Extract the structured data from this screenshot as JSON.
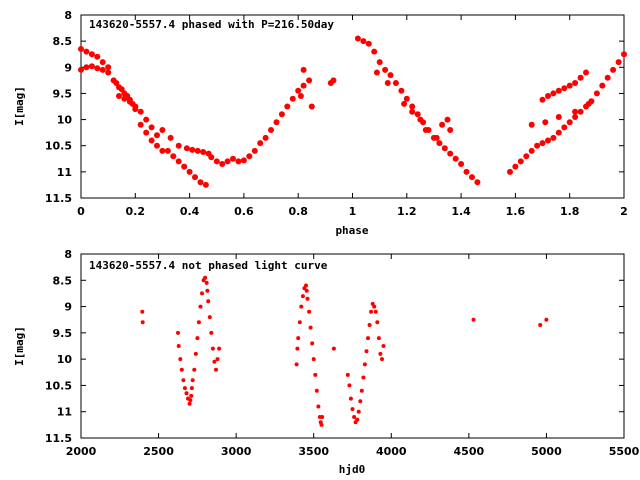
{
  "chart_data": [
    {
      "type": "scatter",
      "title": "143620-5557.4 phased with P=216.50day",
      "xlabel": "phase",
      "ylabel": "I[mag]",
      "xlim": [
        0,
        2
      ],
      "ylim": [
        8,
        11.5
      ],
      "y_inverted": true,
      "x_ticks": [
        "0",
        "0.2",
        "0.4",
        "0.6",
        "0.8",
        "1",
        "1.2",
        "1.4",
        "1.6",
        "1.8",
        "2"
      ],
      "y_ticks": [
        "8",
        "8.5",
        "9",
        "9.5",
        "10",
        "10.5",
        "11",
        "11.5"
      ],
      "grid": false,
      "marker_color": "#ff0000",
      "series": [
        {
          "x": [
            0.0,
            0.02,
            0.04,
            0.06,
            0.08,
            0.1,
            0.0,
            0.02,
            0.04,
            0.06,
            0.08,
            0.1,
            0.12,
            0.13,
            0.14,
            0.15,
            0.16,
            0.17,
            0.18,
            0.19,
            0.2,
            0.14,
            0.16,
            0.18,
            0.2,
            0.22,
            0.24,
            0.26,
            0.28,
            0.22,
            0.24,
            0.26,
            0.28,
            0.3,
            0.32,
            0.34,
            0.36,
            0.38,
            0.4,
            0.42,
            0.44,
            0.46,
            0.3,
            0.33,
            0.36,
            0.39,
            0.41,
            0.43,
            0.45,
            0.47,
            0.48,
            0.5,
            0.52,
            0.54,
            0.56,
            0.58,
            0.6,
            0.62,
            0.64,
            0.66,
            0.68,
            0.7,
            0.72,
            0.74,
            0.76,
            0.78,
            0.8,
            0.82,
            0.84,
            0.81,
            0.85,
            0.92,
            0.93,
            0.82,
            1.02,
            1.04,
            1.06,
            1.08,
            1.1,
            1.12,
            1.14,
            1.16,
            1.18,
            1.2,
            1.22,
            1.24,
            1.26,
            1.28,
            1.3,
            1.32,
            1.34,
            1.36,
            1.38,
            1.4,
            1.42,
            1.44,
            1.46,
            1.09,
            1.13,
            1.19,
            1.22,
            1.25,
            1.27,
            1.31,
            1.33,
            1.35,
            1.36,
            1.58,
            1.6,
            1.62,
            1.64,
            1.66,
            1.68,
            1.7,
            1.72,
            1.74,
            1.76,
            1.78,
            1.8,
            1.82,
            1.84,
            1.86,
            1.88,
            1.9,
            1.92,
            1.94,
            1.96,
            1.98,
            2.0,
            1.7,
            1.72,
            1.74,
            1.76,
            1.78,
            1.8,
            1.82,
            1.84,
            1.86,
            1.66,
            1.71,
            1.76,
            1.82,
            1.87
          ],
          "y": [
            8.65,
            8.7,
            8.75,
            8.8,
            8.9,
            9.0,
            9.05,
            9.0,
            8.98,
            9.02,
            9.05,
            9.1,
            9.25,
            9.3,
            9.38,
            9.42,
            9.5,
            9.55,
            9.62,
            9.7,
            9.8,
            9.55,
            9.6,
            9.66,
            9.75,
            9.85,
            10.0,
            10.15,
            10.3,
            10.1,
            10.25,
            10.4,
            10.5,
            10.6,
            10.6,
            10.7,
            10.8,
            10.9,
            11.0,
            11.1,
            11.2,
            11.25,
            10.2,
            10.35,
            10.5,
            10.55,
            10.58,
            10.6,
            10.62,
            10.65,
            10.72,
            10.8,
            10.85,
            10.8,
            10.75,
            10.8,
            10.78,
            10.7,
            10.6,
            10.45,
            10.35,
            10.2,
            10.05,
            9.9,
            9.75,
            9.6,
            9.45,
            9.35,
            9.25,
            9.55,
            9.75,
            9.3,
            9.25,
            9.05,
            8.45,
            8.5,
            8.55,
            8.7,
            8.9,
            9.05,
            9.15,
            9.3,
            9.45,
            9.6,
            9.75,
            9.9,
            10.05,
            10.2,
            10.35,
            10.45,
            10.55,
            10.65,
            10.75,
            10.85,
            11.0,
            11.1,
            11.2,
            9.1,
            9.3,
            9.7,
            9.85,
            10.0,
            10.2,
            10.35,
            10.1,
            10.0,
            10.2,
            11.0,
            10.9,
            10.8,
            10.7,
            10.6,
            10.5,
            10.45,
            10.4,
            10.35,
            10.25,
            10.15,
            10.05,
            9.95,
            9.85,
            9.75,
            9.65,
            9.5,
            9.35,
            9.2,
            9.05,
            8.9,
            8.75,
            9.62,
            9.55,
            9.5,
            9.45,
            9.4,
            9.35,
            9.3,
            9.2,
            9.1,
            10.1,
            10.05,
            9.95,
            9.85,
            9.7
          ]
        }
      ]
    },
    {
      "type": "scatter",
      "title": "143620-5557.4 not phased light curve",
      "xlabel": "hjd0",
      "ylabel": "I[mag]",
      "xlim": [
        2000,
        5500
      ],
      "ylim": [
        8,
        11.5
      ],
      "y_inverted": true,
      "x_ticks": [
        "2000",
        "2500",
        "3000",
        "3500",
        "4000",
        "4500",
        "5000",
        "5500"
      ],
      "y_ticks": [
        "8",
        "8.5",
        "9",
        "9.5",
        "10",
        "10.5",
        "11",
        "11.5"
      ],
      "grid": false,
      "marker_color": "#ff0000",
      "series": [
        {
          "x": [
            2395,
            2398,
            2625,
            2630,
            2640,
            2650,
            2660,
            2670,
            2680,
            2690,
            2700,
            2705,
            2710,
            2715,
            2720,
            2730,
            2740,
            2750,
            2760,
            2770,
            2780,
            2790,
            2800,
            2810,
            2815,
            2820,
            2830,
            2840,
            2850,
            2860,
            2870,
            2880,
            2890,
            3390,
            3395,
            3400,
            3410,
            3420,
            3430,
            3440,
            3450,
            3455,
            3460,
            3470,
            3480,
            3490,
            3500,
            3510,
            3520,
            3530,
            3540,
            3545,
            3550,
            3555,
            3630,
            3720,
            3730,
            3740,
            3750,
            3760,
            3770,
            3780,
            3790,
            3800,
            3810,
            3820,
            3830,
            3840,
            3850,
            3860,
            3870,
            3880,
            3890,
            3900,
            3910,
            3920,
            3930,
            3940,
            3950,
            4530,
            4960,
            5000
          ],
          "y": [
            9.1,
            9.3,
            9.5,
            9.75,
            10.0,
            10.2,
            10.4,
            10.55,
            10.65,
            10.75,
            10.85,
            10.78,
            10.7,
            10.55,
            10.4,
            10.2,
            9.9,
            9.6,
            9.3,
            9.0,
            8.75,
            8.5,
            8.45,
            8.55,
            8.7,
            8.9,
            9.2,
            9.5,
            9.8,
            10.05,
            10.2,
            10.0,
            9.8,
            10.1,
            9.8,
            9.6,
            9.3,
            9.0,
            8.8,
            8.65,
            8.6,
            8.7,
            8.85,
            9.1,
            9.4,
            9.7,
            10.0,
            10.3,
            10.6,
            10.9,
            11.1,
            11.2,
            11.25,
            11.1,
            9.8,
            10.3,
            10.5,
            10.75,
            10.95,
            11.1,
            11.2,
            11.15,
            11.0,
            10.8,
            10.6,
            10.35,
            10.1,
            9.85,
            9.6,
            9.35,
            9.1,
            8.95,
            9.0,
            9.1,
            9.3,
            9.6,
            9.9,
            10.0,
            9.75,
            9.25,
            9.35,
            9.25
          ]
        }
      ]
    }
  ]
}
